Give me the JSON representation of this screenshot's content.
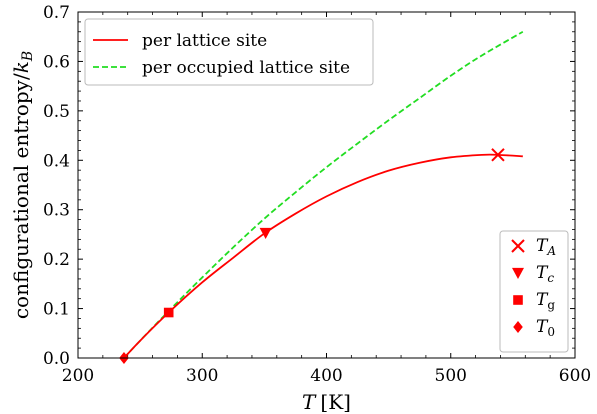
{
  "chart_data": {
    "type": "line",
    "xlabel": {
      "symbol": "T",
      "unit": "[K]"
    },
    "ylabel": {
      "text": "configurational entropy",
      "symbol": "k",
      "sub": "B"
    },
    "xlim": [
      200,
      600
    ],
    "ylim": [
      0.0,
      0.7
    ],
    "xticks": [
      200,
      300,
      400,
      500,
      600
    ],
    "yticks": [
      0.0,
      0.1,
      0.2,
      0.3,
      0.4,
      0.5,
      0.6,
      0.7
    ],
    "xtick_labels": [
      "200",
      "300",
      "400",
      "500",
      "600"
    ],
    "ytick_labels": [
      "0.0",
      "0.1",
      "0.2",
      "0.3",
      "0.4",
      "0.5",
      "0.6",
      "0.7"
    ],
    "series": [
      {
        "name": "per lattice site",
        "color": "#ff0000",
        "style": "solid",
        "x": [
          237,
          250,
          273,
          300,
          325,
          350,
          375,
          400,
          425,
          450,
          475,
          500,
          525,
          538,
          558
        ],
        "y": [
          0.0,
          0.035,
          0.092,
          0.153,
          0.203,
          0.252,
          0.292,
          0.327,
          0.356,
          0.379,
          0.395,
          0.406,
          0.411,
          0.411,
          0.408
        ]
      },
      {
        "name": "per occupied lattice site",
        "color": "#22dd22",
        "style": "dashed",
        "x": [
          237,
          250,
          273,
          300,
          325,
          350,
          375,
          400,
          425,
          450,
          475,
          500,
          525,
          558
        ],
        "y": [
          0.0,
          0.035,
          0.095,
          0.163,
          0.224,
          0.282,
          0.335,
          0.386,
          0.434,
          0.481,
          0.526,
          0.571,
          0.612,
          0.66
        ]
      }
    ],
    "markers": [
      {
        "name": "T_A",
        "symbol": "T",
        "sub": "A",
        "shape": "x",
        "x": 538,
        "y": 0.411,
        "color": "#ff0000"
      },
      {
        "name": "T_c",
        "symbol": "T",
        "sub": "c",
        "shape": "triangle-down",
        "x": 351,
        "y": 0.253,
        "color": "#ff0000"
      },
      {
        "name": "T_g",
        "symbol": "T",
        "sub": "g",
        "shape": "square",
        "x": 273,
        "y": 0.092,
        "color": "#ff0000"
      },
      {
        "name": "T_0",
        "symbol": "T",
        "sub": "0",
        "shape": "diamond",
        "x": 237,
        "y": 0.0,
        "color": "#ff0000"
      }
    ],
    "legend_lines_position": "top-left",
    "legend_markers_position": "bottom-right",
    "grid": false
  }
}
